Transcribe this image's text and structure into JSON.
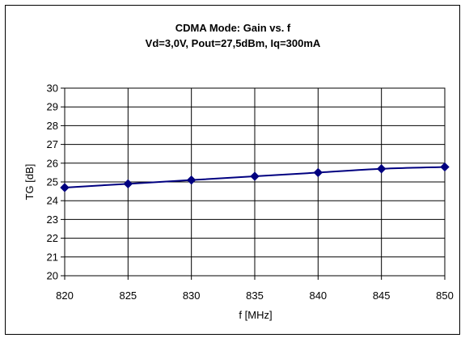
{
  "chart_data": {
    "type": "line",
    "title": "CDMA Mode: Gain vs. f",
    "subtitle": "Vd=3,0V, Pout=27,5dBm, Iq=300mA",
    "xlabel": "f [MHz]",
    "ylabel": "TG [dB]",
    "x": [
      820,
      825,
      830,
      835,
      840,
      845,
      850
    ],
    "xticks": [
      "820",
      "825",
      "830",
      "835",
      "840",
      "845",
      "850"
    ],
    "yticks": [
      "20",
      "21",
      "22",
      "23",
      "24",
      "25",
      "26",
      "27",
      "28",
      "29",
      "30"
    ],
    "xlim": [
      820,
      850
    ],
    "ylim": [
      20,
      30
    ],
    "grid": true,
    "legend": "none",
    "series": [
      {
        "values": [
          24.7,
          24.9,
          25.1,
          25.3,
          25.5,
          25.7,
          25.8
        ],
        "color": "#000080",
        "marker": "diamond"
      }
    ]
  }
}
